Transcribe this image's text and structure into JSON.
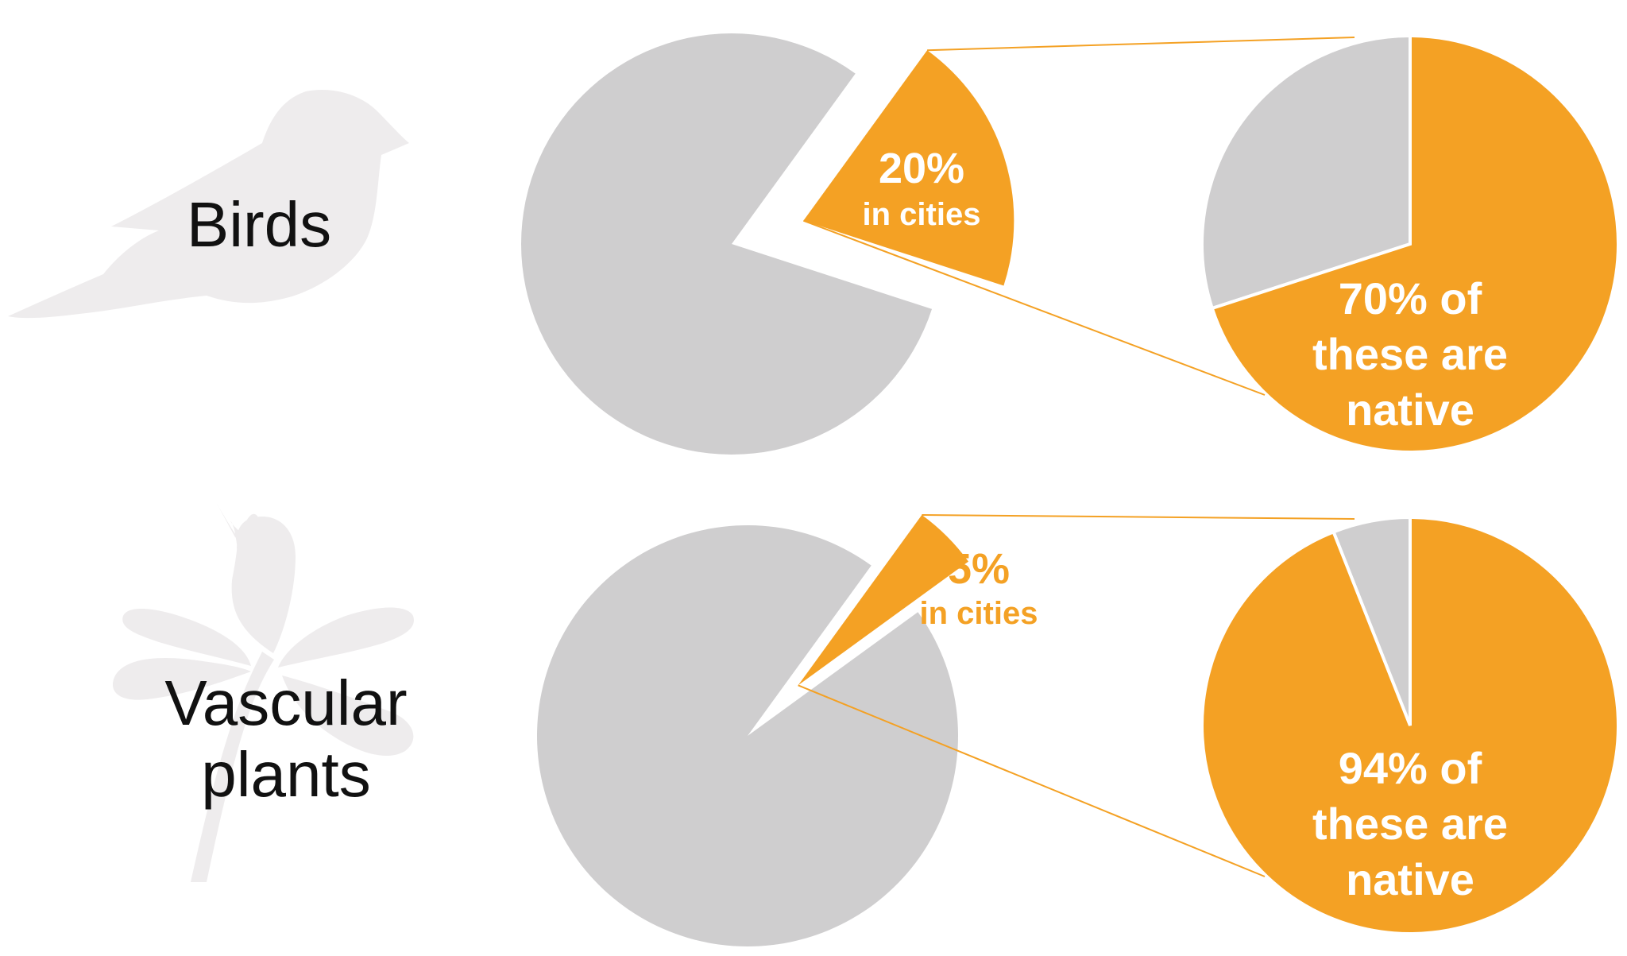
{
  "colors": {
    "highlight": "#f4a124",
    "base": "#cfcecf",
    "silhouette": "#eeeced"
  },
  "rows": [
    {
      "label": "Birds",
      "silhouette_icon": "bird-silhouette",
      "in_cities_pct": "20%",
      "in_cities_text": "in cities",
      "native_lines": [
        "70% of",
        "these are",
        "native"
      ]
    },
    {
      "label_lines": [
        "Vascular",
        "plants"
      ],
      "silhouette_icon": "leaf-sprig-silhouette",
      "in_cities_pct": "5%",
      "in_cities_text": "in cities",
      "native_lines": [
        "94% of",
        "these are",
        "native"
      ]
    }
  ],
  "chart_data": [
    {
      "type": "pie",
      "group": "Birds",
      "slices": [
        {
          "label": "in cities",
          "value": 20
        },
        {
          "label": "not in cities",
          "value": 80
        }
      ],
      "exploded": "in cities"
    },
    {
      "type": "pie",
      "group": "Birds in cities",
      "slices": [
        {
          "label": "native",
          "value": 70
        },
        {
          "label": "non-native",
          "value": 30
        }
      ]
    },
    {
      "type": "pie",
      "group": "Vascular plants",
      "slices": [
        {
          "label": "in cities",
          "value": 5
        },
        {
          "label": "not in cities",
          "value": 95
        }
      ],
      "exploded": "in cities"
    },
    {
      "type": "pie",
      "group": "Vascular plants in cities",
      "slices": [
        {
          "label": "native",
          "value": 94
        },
        {
          "label": "non-native",
          "value": 6
        }
      ]
    }
  ]
}
